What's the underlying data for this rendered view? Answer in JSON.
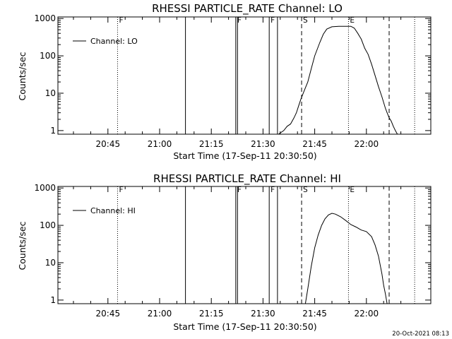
{
  "footer": {
    "timestamp": "20-Oct-2021 08:13"
  },
  "chart_data": [
    {
      "type": "line",
      "title": "RHESSI PARTICLE_RATE Channel: LO",
      "xlabel": "Start Time (17-Sep-11 20:30:50)",
      "ylabel": "Counts/sec",
      "xlim_minutes": [
        20.833,
        96.0
      ],
      "ylim": [
        0.8,
        1100
      ],
      "log_y": true,
      "x_ticks": [
        {
          "label": "20:45",
          "minutes": 45
        },
        {
          "label": "21:00",
          "minutes": 60
        },
        {
          "label": "21:15",
          "minutes": 75
        },
        {
          "label": "21:30",
          "minutes": 90
        },
        {
          "label": "21:45",
          "minutes": 105
        },
        {
          "label": "22:00",
          "minutes": 120
        }
      ],
      "y_ticks": [
        {
          "label": "1",
          "value": 1
        },
        {
          "label": "10",
          "value": 10
        },
        {
          "label": "100",
          "value": 100
        },
        {
          "label": "1000",
          "value": 1000
        }
      ],
      "legend": {
        "label": "Channel: LO",
        "placement": "top-left"
      },
      "markers": [
        {
          "minutes": 47.8,
          "style": "dotted",
          "label": "F"
        },
        {
          "minutes": 67.5,
          "style": "solid",
          "label": ""
        },
        {
          "minutes": 82.1,
          "style": "solid",
          "label": "F"
        },
        {
          "minutes": 82.6,
          "style": "solid",
          "label": ""
        },
        {
          "minutes": 91.8,
          "style": "solid",
          "label": "F"
        },
        {
          "minutes": 94.2,
          "style": "solid",
          "label": ""
        },
        {
          "minutes": 101.2,
          "style": "dashed",
          "label": "S"
        },
        {
          "minutes": 114.8,
          "style": "dotted",
          "label": "E"
        },
        {
          "minutes": 126.6,
          "style": "dashed",
          "label": ""
        },
        {
          "minutes": 134.0,
          "style": "dotted",
          "label": ""
        }
      ],
      "series": [
        {
          "name": "Channel: LO",
          "x_minutes": [
            94.5,
            96.0,
            97.0,
            98.0,
            99.0,
            99.7,
            100.3,
            101.0,
            102.0,
            103.0,
            104.0,
            105.0,
            106.5,
            107.5,
            108.5,
            110.0,
            112.0,
            114.0,
            115.5,
            116.5,
            117.5,
            118.5,
            119.5,
            120.5,
            121.5,
            122.5,
            123.5,
            124.5,
            125.5,
            126.0,
            126.6,
            127.2,
            127.8,
            128.4,
            129.0
          ],
          "y": [
            0.8,
            1.0,
            1.3,
            1.5,
            2.2,
            3.0,
            4.5,
            7.0,
            12,
            20,
            45,
            100,
            230,
            380,
            520,
            600,
            620,
            620,
            620,
            550,
            400,
            280,
            160,
            110,
            60,
            30,
            15,
            8,
            4,
            3,
            2.2,
            1.8,
            1.3,
            1.0,
            0.8
          ]
        }
      ]
    },
    {
      "type": "line",
      "title": "RHESSI PARTICLE_RATE Channel: HI",
      "xlabel": "Start Time (17-Sep-11 20:30:50)",
      "ylabel": "Counts/sec",
      "xlim_minutes": [
        20.833,
        96.0
      ],
      "ylim": [
        0.8,
        1100
      ],
      "log_y": true,
      "x_ticks": [
        {
          "label": "20:45",
          "minutes": 45
        },
        {
          "label": "21:00",
          "minutes": 60
        },
        {
          "label": "21:15",
          "minutes": 75
        },
        {
          "label": "21:30",
          "minutes": 90
        },
        {
          "label": "21:45",
          "minutes": 105
        },
        {
          "label": "22:00",
          "minutes": 120
        }
      ],
      "y_ticks": [
        {
          "label": "1",
          "value": 1
        },
        {
          "label": "10",
          "value": 10
        },
        {
          "label": "100",
          "value": 100
        },
        {
          "label": "1000",
          "value": 1000
        }
      ],
      "legend": {
        "label": "Channel: HI",
        "placement": "top-left"
      },
      "markers": [
        {
          "minutes": 47.8,
          "style": "dotted",
          "label": "F"
        },
        {
          "minutes": 67.5,
          "style": "solid",
          "label": ""
        },
        {
          "minutes": 82.1,
          "style": "solid",
          "label": "F"
        },
        {
          "minutes": 82.6,
          "style": "solid",
          "label": ""
        },
        {
          "minutes": 91.8,
          "style": "solid",
          "label": "F"
        },
        {
          "minutes": 94.2,
          "style": "solid",
          "label": ""
        },
        {
          "minutes": 101.2,
          "style": "dashed",
          "label": "S"
        },
        {
          "minutes": 114.8,
          "style": "dotted",
          "label": "E"
        },
        {
          "minutes": 126.6,
          "style": "dashed",
          "label": ""
        },
        {
          "minutes": 134.0,
          "style": "dotted",
          "label": ""
        }
      ],
      "series": [
        {
          "name": "Channel: HI",
          "x_minutes": [
            102.3,
            103.0,
            104.0,
            105.0,
            106.0,
            107.0,
            108.0,
            109.0,
            110.0,
            111.0,
            112.5,
            114.0,
            115.5,
            117.0,
            118.5,
            120.0,
            121.5,
            122.5,
            123.5,
            124.5,
            125.0,
            125.5,
            126.0
          ],
          "y": [
            0.8,
            2.0,
            8.0,
            25,
            55,
            100,
            150,
            190,
            210,
            200,
            170,
            135,
            105,
            90,
            75,
            68,
            50,
            30,
            15,
            5,
            2.5,
            1.5,
            0.8
          ]
        }
      ]
    }
  ]
}
